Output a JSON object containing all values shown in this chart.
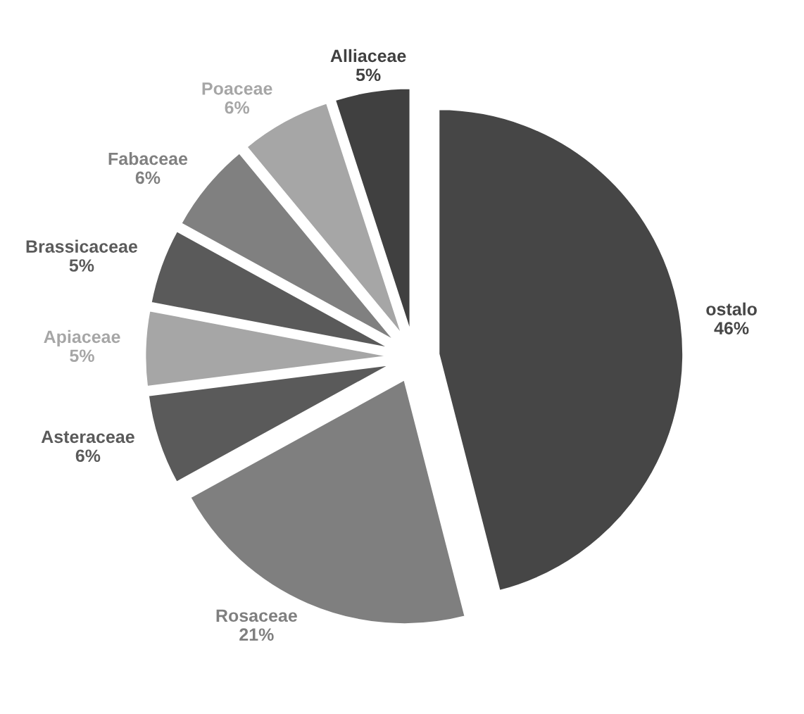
{
  "chart_data": {
    "type": "pie",
    "categories": [
      "ostalo",
      "Rosaceae",
      "Asteraceae",
      "Apiaceae",
      "Brassicaceae",
      "Fabaceae",
      "Poaceae",
      "Alliaceae"
    ],
    "values": [
      46,
      21,
      6,
      5,
      5,
      6,
      6,
      5
    ],
    "value_labels": [
      "46%",
      "21%",
      "6%",
      "5%",
      "5%",
      "6%",
      "6%",
      "5%"
    ],
    "colors": [
      "#464646",
      "#7f7f7f",
      "#5a5a5a",
      "#a6a6a6",
      "#5a5a5a",
      "#808080",
      "#a6a6a6",
      "#404040"
    ]
  }
}
